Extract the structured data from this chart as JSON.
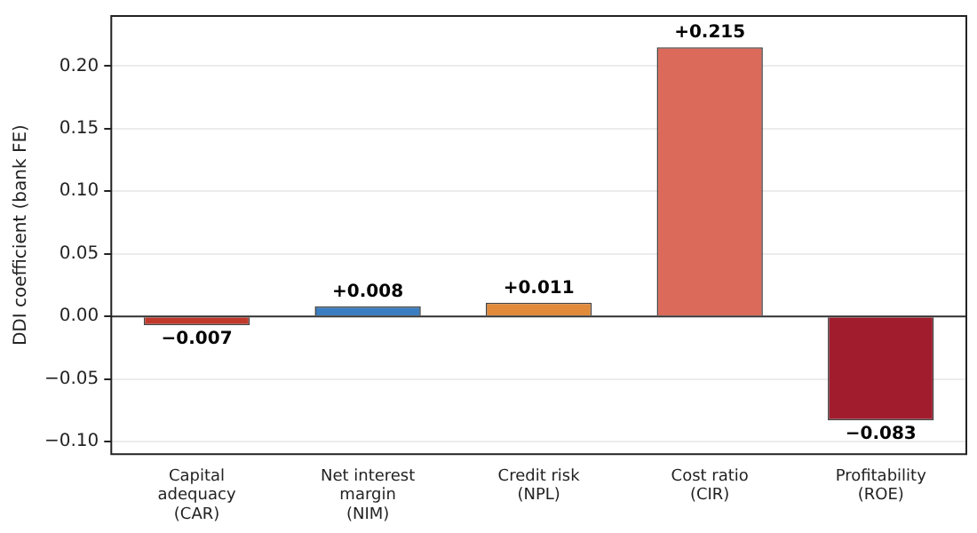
{
  "chart_data": {
    "type": "bar",
    "ylabel": "DDI coefficient (bank FE)",
    "categories": [
      "Capital\nadequacy\n(CAR)",
      "Net interest\nmargin\n(NIM)",
      "Credit risk\n(NPL)",
      "Cost ratio\n(CIR)",
      "Profitability\n(ROE)"
    ],
    "values": [
      -0.007,
      0.008,
      0.011,
      0.215,
      -0.083
    ],
    "colors": [
      "#c0392b",
      "#3a7dc0",
      "#e08a3a",
      "#dc6a5a",
      "#a11d2e"
    ],
    "value_labels": [
      "−0.007",
      "+0.008",
      "+0.011",
      "+0.215",
      "−0.083"
    ],
    "ylim": [
      -0.11,
      0.24
    ],
    "yticks": [
      {
        "value": -0.1,
        "label": "−0.10"
      },
      {
        "value": -0.05,
        "label": "−0.05"
      },
      {
        "value": 0,
        "label": "0.00"
      },
      {
        "value": 0.05,
        "label": "0.05"
      },
      {
        "value": 0.1,
        "label": "0.10"
      },
      {
        "value": 0.15,
        "label": "0.15"
      },
      {
        "value": 0.2,
        "label": "0.20"
      }
    ],
    "ref_lines": [
      {
        "axis": "y",
        "value": 0,
        "color": "#333333"
      }
    ],
    "grid": "y",
    "legend": false
  }
}
